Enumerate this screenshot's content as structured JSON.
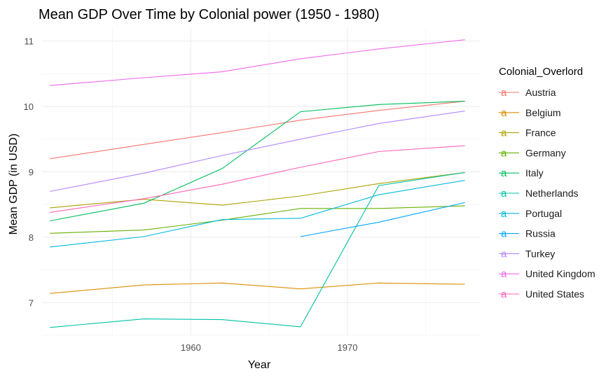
{
  "chart_data": {
    "type": "line",
    "title": "Mean GDP Over Time by Colonial power (1950 - 1980)",
    "xlabel": "Year",
    "ylabel": "Mean GDP (in USD)",
    "xlim": [
      1950.5,
      1978.5
    ],
    "ylim": [
      6.5,
      11.2
    ],
    "x_ticks": [
      1960,
      1970
    ],
    "y_ticks": [
      7,
      8,
      9,
      10,
      11
    ],
    "grid": true,
    "legend_title": "Colonial_Overlord",
    "legend_position": "right",
    "legend_key_glyph": "a",
    "series": [
      {
        "name": "Austria",
        "color": "#F8766D",
        "points": [
          [
            1951,
            9.2
          ],
          [
            1957,
            9.42
          ],
          [
            1962,
            9.6
          ],
          [
            1967,
            9.79
          ],
          [
            1972,
            9.94
          ],
          [
            1977.5,
            10.08
          ]
        ]
      },
      {
        "name": "Belgium",
        "color": "#DB8E00",
        "points": [
          [
            1951,
            7.14
          ],
          [
            1957,
            7.27
          ],
          [
            1962,
            7.3
          ],
          [
            1967,
            7.21
          ],
          [
            1972,
            7.3
          ],
          [
            1977.5,
            7.28
          ]
        ]
      },
      {
        "name": "France",
        "color": "#AEA200",
        "points": [
          [
            1951,
            8.45
          ],
          [
            1957,
            8.58
          ],
          [
            1962,
            8.49
          ],
          [
            1967,
            8.63
          ],
          [
            1972,
            8.82
          ],
          [
            1977.5,
            8.99
          ]
        ]
      },
      {
        "name": "Germany",
        "color": "#64B200",
        "points": [
          [
            1951,
            8.06
          ],
          [
            1957,
            8.11
          ],
          [
            1962,
            8.26
          ],
          [
            1967,
            8.44
          ],
          [
            1972,
            8.44
          ],
          [
            1977.5,
            8.48
          ]
        ]
      },
      {
        "name": "Italy",
        "color": "#00BD5C",
        "points": [
          [
            1951,
            8.25
          ],
          [
            1957,
            8.52
          ],
          [
            1962,
            9.05
          ],
          [
            1967,
            9.92
          ],
          [
            1972,
            10.03
          ],
          [
            1977.5,
            10.08
          ]
        ]
      },
      {
        "name": "Netherlands",
        "color": "#00C1A7",
        "points": [
          [
            1951,
            6.62
          ],
          [
            1957,
            6.75
          ],
          [
            1962,
            6.74
          ],
          [
            1967,
            6.63
          ],
          [
            1972,
            8.79
          ],
          [
            1977.5,
            8.99
          ]
        ]
      },
      {
        "name": "Portugal",
        "color": "#00BADE",
        "points": [
          [
            1951,
            7.85
          ],
          [
            1957,
            8.01
          ],
          [
            1962,
            8.27
          ],
          [
            1967,
            8.29
          ],
          [
            1972,
            8.65
          ],
          [
            1977.5,
            8.87
          ]
        ]
      },
      {
        "name": "Russia",
        "color": "#00A6FF",
        "points": [
          [
            1967,
            8.01
          ],
          [
            1972,
            8.23
          ],
          [
            1977.5,
            8.53
          ]
        ]
      },
      {
        "name": "Turkey",
        "color": "#B385FF",
        "points": [
          [
            1951,
            8.7
          ],
          [
            1957,
            8.98
          ],
          [
            1962,
            9.25
          ],
          [
            1967,
            9.5
          ],
          [
            1972,
            9.74
          ],
          [
            1977.5,
            9.93
          ]
        ]
      },
      {
        "name": "United Kingdom",
        "color": "#EF67EB",
        "points": [
          [
            1951,
            10.32
          ],
          [
            1957,
            10.44
          ],
          [
            1962,
            10.53
          ],
          [
            1967,
            10.73
          ],
          [
            1972,
            10.88
          ],
          [
            1977.5,
            11.02
          ]
        ]
      },
      {
        "name": "United States",
        "color": "#FF63B6",
        "points": [
          [
            1951,
            8.38
          ],
          [
            1957,
            8.59
          ],
          [
            1962,
            8.81
          ],
          [
            1967,
            9.07
          ],
          [
            1972,
            9.31
          ],
          [
            1977.5,
            9.4
          ]
        ]
      }
    ]
  }
}
